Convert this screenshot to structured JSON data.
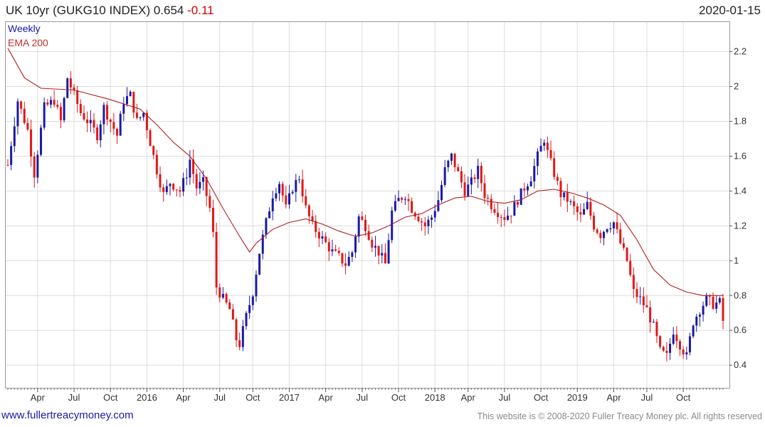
{
  "header": {
    "title": "UK 10yr (GUKG10 INDEX) 0.654",
    "change": "-0.11",
    "date": "2020-01-15"
  },
  "footer": {
    "left": "www.fullertreacymoney.com",
    "right": "This website is © 2008-2020 Fuller Treacy Money plc. All rights reserved"
  },
  "colors": {
    "up": "#1a1aa6",
    "down": "#e01818",
    "ema": "#b02020",
    "grid": "#dddddd"
  },
  "chart_data": {
    "type": "candlestick",
    "legend": [
      "Weekly",
      "EMA 200"
    ],
    "legend_placement": "top-left",
    "grid": true,
    "ylim": [
      0.27,
      2.37
    ],
    "yticks": [
      0.4,
      0.6,
      0.8,
      1,
      1.2,
      1.4,
      1.6,
      1.8,
      2,
      2.2
    ],
    "ytick_labels": [
      "0.4",
      "0.6",
      "0.8",
      "1",
      "1.2",
      "1.4",
      "1.6",
      "1.8",
      "2",
      "2.2"
    ],
    "xlim": [
      0,
      216
    ],
    "xticks": [
      9,
      20,
      31,
      42,
      53,
      64,
      74,
      85,
      96,
      107,
      118,
      129,
      139,
      150,
      161,
      172,
      183,
      193,
      204
    ],
    "xtick_labels": [
      "Apr",
      "Jul",
      "Oct",
      "2016",
      "Apr",
      "Jul",
      "Oct",
      "2017",
      "Apr",
      "Jul",
      "Oct",
      "2018",
      "Apr",
      "Jul",
      "Oct",
      "2019",
      "Apr",
      "Jul",
      "Oct"
    ],
    "price_path": [
      [
        0,
        1.55
      ],
      [
        3,
        1.92
      ],
      [
        6,
        1.75
      ],
      [
        8,
        1.5
      ],
      [
        11,
        1.88
      ],
      [
        14,
        1.92
      ],
      [
        16,
        1.8
      ],
      [
        18,
        2.05
      ],
      [
        20,
        1.95
      ],
      [
        22,
        1.85
      ],
      [
        25,
        1.78
      ],
      [
        27,
        1.72
      ],
      [
        29,
        1.88
      ],
      [
        31,
        1.8
      ],
      [
        33,
        1.72
      ],
      [
        35,
        1.92
      ],
      [
        37,
        1.95
      ],
      [
        39,
        1.8
      ],
      [
        41,
        1.85
      ],
      [
        43,
        1.68
      ],
      [
        45,
        1.52
      ],
      [
        47,
        1.38
      ],
      [
        49,
        1.45
      ],
      [
        52,
        1.4
      ],
      [
        54,
        1.5
      ],
      [
        55,
        1.58
      ],
      [
        57,
        1.42
      ],
      [
        59,
        1.45
      ],
      [
        61,
        1.3
      ],
      [
        62,
        1.15
      ],
      [
        63,
        0.85
      ],
      [
        65,
        0.78
      ],
      [
        67,
        0.72
      ],
      [
        69,
        0.55
      ],
      [
        70,
        0.52
      ],
      [
        72,
        0.68
      ],
      [
        74,
        0.82
      ],
      [
        76,
        1.05
      ],
      [
        78,
        1.22
      ],
      [
        80,
        1.38
      ],
      [
        82,
        1.45
      ],
      [
        84,
        1.3
      ],
      [
        86,
        1.42
      ],
      [
        88,
        1.48
      ],
      [
        90,
        1.3
      ],
      [
        92,
        1.2
      ],
      [
        94,
        1.15
      ],
      [
        96,
        1.1
      ],
      [
        98,
        1.05
      ],
      [
        100,
        1.02
      ],
      [
        102,
        0.98
      ],
      [
        104,
        1.05
      ],
      [
        106,
        1.25
      ],
      [
        108,
        1.2
      ],
      [
        110,
        1.1
      ],
      [
        112,
        1.05
      ],
      [
        114,
        0.98
      ],
      [
        116,
        1.28
      ],
      [
        118,
        1.35
      ],
      [
        120,
        1.38
      ],
      [
        122,
        1.3
      ],
      [
        124,
        1.25
      ],
      [
        126,
        1.2
      ],
      [
        128,
        1.25
      ],
      [
        130,
        1.35
      ],
      [
        132,
        1.52
      ],
      [
        134,
        1.6
      ],
      [
        136,
        1.5
      ],
      [
        138,
        1.4
      ],
      [
        140,
        1.45
      ],
      [
        142,
        1.52
      ],
      [
        144,
        1.38
      ],
      [
        146,
        1.32
      ],
      [
        148,
        1.28
      ],
      [
        150,
        1.25
      ],
      [
        152,
        1.28
      ],
      [
        154,
        1.35
      ],
      [
        156,
        1.42
      ],
      [
        158,
        1.48
      ],
      [
        160,
        1.6
      ],
      [
        162,
        1.7
      ],
      [
        163,
        1.62
      ],
      [
        165,
        1.5
      ],
      [
        167,
        1.38
      ],
      [
        169,
        1.35
      ],
      [
        171,
        1.3
      ],
      [
        173,
        1.25
      ],
      [
        175,
        1.32
      ],
      [
        177,
        1.2
      ],
      [
        179,
        1.15
      ],
      [
        181,
        1.2
      ],
      [
        183,
        1.22
      ],
      [
        185,
        1.1
      ],
      [
        187,
        1.0
      ],
      [
        189,
        0.82
      ],
      [
        191,
        0.78
      ],
      [
        193,
        0.72
      ],
      [
        195,
        0.62
      ],
      [
        197,
        0.48
      ],
      [
        199,
        0.45
      ],
      [
        201,
        0.6
      ],
      [
        203,
        0.52
      ],
      [
        205,
        0.45
      ],
      [
        207,
        0.65
      ],
      [
        209,
        0.72
      ],
      [
        211,
        0.78
      ],
      [
        213,
        0.75
      ],
      [
        215,
        0.76
      ],
      [
        216,
        0.654
      ]
    ],
    "ema_path": [
      [
        0,
        2.22
      ],
      [
        5,
        2.05
      ],
      [
        10,
        1.99
      ],
      [
        20,
        1.98
      ],
      [
        30,
        1.93
      ],
      [
        40,
        1.87
      ],
      [
        45,
        1.78
      ],
      [
        50,
        1.68
      ],
      [
        55,
        1.6
      ],
      [
        60,
        1.47
      ],
      [
        65,
        1.3
      ],
      [
        70,
        1.14
      ],
      [
        73,
        1.05
      ],
      [
        75,
        1.1
      ],
      [
        80,
        1.18
      ],
      [
        85,
        1.22
      ],
      [
        90,
        1.24
      ],
      [
        95,
        1.21
      ],
      [
        100,
        1.17
      ],
      [
        105,
        1.14
      ],
      [
        110,
        1.16
      ],
      [
        115,
        1.2
      ],
      [
        120,
        1.25
      ],
      [
        125,
        1.27
      ],
      [
        130,
        1.32
      ],
      [
        135,
        1.36
      ],
      [
        140,
        1.37
      ],
      [
        145,
        1.34
      ],
      [
        150,
        1.33
      ],
      [
        155,
        1.35
      ],
      [
        160,
        1.4
      ],
      [
        165,
        1.41
      ],
      [
        170,
        1.39
      ],
      [
        175,
        1.36
      ],
      [
        180,
        1.32
      ],
      [
        185,
        1.26
      ],
      [
        190,
        1.12
      ],
      [
        195,
        0.95
      ],
      [
        200,
        0.86
      ],
      [
        205,
        0.82
      ],
      [
        210,
        0.8
      ],
      [
        216,
        0.8
      ]
    ]
  }
}
